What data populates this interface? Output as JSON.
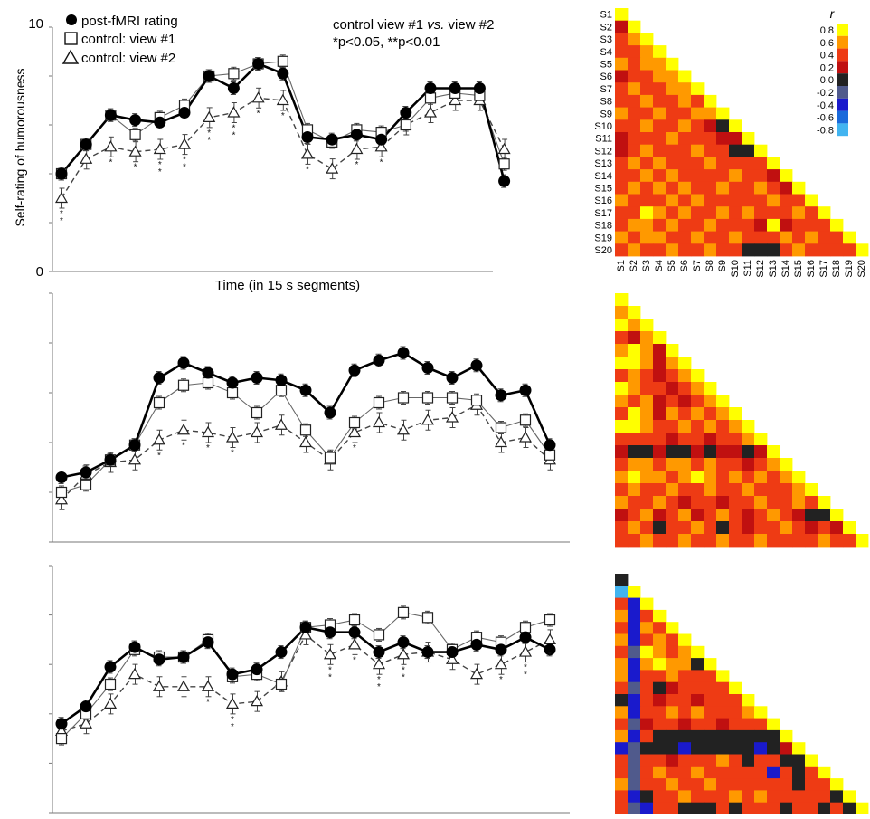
{
  "chart_data": {
    "type": "line",
    "y_axis": {
      "label": "Self-rating of humorousness",
      "ticks": [
        "0",
        "10"
      ],
      "ylim": [
        0,
        10
      ]
    },
    "x_axis": {
      "label": "Time (in 15 s segments)"
    },
    "legend": [
      {
        "name": "post-fMRI rating",
        "marker": "filled-circle"
      },
      {
        "name": "control: view #1",
        "marker": "open-square"
      },
      {
        "name": "control: view #2",
        "marker": "open-triangle"
      }
    ],
    "legend_position": "top-left",
    "annotation": {
      "line1_pre": "control view #1 ",
      "line1_em": "vs.",
      "line1_post": " view #2",
      "line2": "*p<0.05, **p<0.01"
    },
    "panels": [
      {
        "n_points": 20,
        "series": [
          {
            "name": "post-fMRI rating",
            "values": [
              4.0,
              5.2,
              6.4,
              6.2,
              6.1,
              6.5,
              8.0,
              7.5,
              8.5,
              8.1,
              5.5,
              5.4,
              5.6,
              5.4,
              6.5,
              7.5,
              7.5,
              7.5,
              3.7,
              null
            ]
          },
          {
            "name": "control: view #1",
            "values": [
              4.0,
              5.2,
              6.4,
              5.6,
              6.3,
              6.8,
              8.0,
              8.1,
              8.5,
              8.6,
              5.8,
              5.3,
              5.8,
              5.7,
              6.0,
              7.1,
              7.3,
              7.2,
              4.4,
              null
            ]
          },
          {
            "name": "control: view #2",
            "values": [
              3.0,
              4.6,
              5.1,
              4.9,
              5.0,
              5.2,
              6.3,
              6.5,
              7.1,
              7.0,
              4.8,
              4.2,
              5.0,
              5.1,
              6.0,
              6.5,
              7.0,
              7.0,
              5.0,
              null
            ]
          }
        ],
        "significance": [
          [
            "**"
          ],
          [],
          [
            "*"
          ],
          [
            "*"
          ],
          [
            "**"
          ],
          [
            "**"
          ],
          [
            "**"
          ],
          [
            "**"
          ],
          [
            "*"
          ],
          [
            "*"
          ],
          [
            "*"
          ],
          [],
          [
            "*"
          ],
          [
            "*"
          ],
          [],
          [],
          [],
          [],
          [],
          []
        ]
      },
      {
        "n_points": 21,
        "series": [
          {
            "name": "post-fMRI rating",
            "values": [
              2.6,
              2.8,
              3.3,
              3.9,
              6.6,
              7.2,
              6.8,
              6.4,
              6.6,
              6.5,
              6.1,
              5.2,
              6.9,
              7.3,
              7.6,
              7.0,
              6.6,
              7.1,
              5.9,
              6.1,
              3.9
            ]
          },
          {
            "name": "control: view #1",
            "values": [
              2.0,
              2.3,
              3.3,
              3.9,
              5.6,
              6.3,
              6.4,
              6.0,
              5.2,
              6.1,
              4.5,
              3.4,
              4.8,
              5.6,
              5.8,
              5.8,
              5.8,
              5.7,
              4.6,
              4.9,
              3.5
            ]
          },
          {
            "name": "control: view #2",
            "values": [
              1.7,
              2.7,
              3.2,
              3.3,
              4.1,
              4.5,
              4.4,
              4.2,
              4.4,
              4.7,
              4.0,
              3.3,
              4.4,
              4.8,
              4.5,
              4.9,
              5.0,
              5.5,
              4.0,
              4.2,
              3.3
            ]
          }
        ],
        "significance": [
          [],
          [],
          [],
          [],
          [
            "*"
          ],
          [
            "*"
          ],
          [
            "*"
          ],
          [
            "*"
          ],
          [],
          [],
          [],
          [],
          [
            "*"
          ],
          [],
          [],
          [],
          [],
          [],
          [],
          [],
          []
        ]
      },
      {
        "n_points": 21,
        "series": [
          {
            "name": "post-fMRI rating",
            "values": [
              3.6,
              4.3,
              5.9,
              6.7,
              6.2,
              6.3,
              6.9,
              5.6,
              5.8,
              6.5,
              7.5,
              7.3,
              7.3,
              6.5,
              6.9,
              6.5,
              6.5,
              6.8,
              6.6,
              7.1,
              6.6
            ]
          },
          {
            "name": "control: view #1",
            "values": [
              3.0,
              4.0,
              5.2,
              6.6,
              6.3,
              6.3,
              7.0,
              5.5,
              5.6,
              5.2,
              7.5,
              7.6,
              7.8,
              7.2,
              8.1,
              7.9,
              6.6,
              7.1,
              6.9,
              7.5,
              7.8
            ]
          },
          {
            "name": "control: view #2",
            "values": [
              3.3,
              3.6,
              4.4,
              5.6,
              5.1,
              5.1,
              5.1,
              4.4,
              4.5,
              5.3,
              7.2,
              6.4,
              6.8,
              6.0,
              6.4,
              6.5,
              6.2,
              5.6,
              6.0,
              6.5,
              7.0
            ]
          }
        ],
        "significance": [
          [],
          [],
          [],
          [],
          [],
          [],
          [
            "*"
          ],
          [
            "**"
          ],
          [],
          [],
          [],
          [
            "**"
          ],
          [
            "*"
          ],
          [
            "**"
          ],
          [
            "**"
          ],
          [],
          [],
          [],
          [
            "*"
          ],
          [
            "**"
          ],
          [
            "*"
          ]
        ]
      }
    ]
  },
  "heatmap_data": {
    "type": "heatmap",
    "title": "r",
    "row_labels": [
      "S1",
      "S2",
      "S3",
      "S4",
      "S5",
      "S6",
      "S7",
      "S8",
      "S9",
      "S10",
      "S11",
      "S12",
      "S13",
      "S14",
      "S15",
      "S16",
      "S17",
      "S18",
      "S19",
      "S20"
    ],
    "col_labels": [
      "S1",
      "S2",
      "S3",
      "S4",
      "S5",
      "S6",
      "S7",
      "S8",
      "S9",
      "S10",
      "S11",
      "S12",
      "S13",
      "S14",
      "S15",
      "S16",
      "S17",
      "S18",
      "S19",
      "S20"
    ],
    "colorbar": {
      "ticks": [
        "0.8",
        "0.6",
        "0.4",
        "0.2",
        "0.0",
        "-0.2",
        "-0.4",
        "-0.6",
        "-0.8"
      ],
      "colors": [
        "#ffff00",
        "#ff9900",
        "#ee3b14",
        "#c01010",
        "#222222",
        "#505a8c",
        "#1a1acc",
        "#1a6adb",
        "#42b4f0"
      ]
    },
    "matrices": [
      [
        [
          0.8
        ],
        [
          0.2,
          0.8
        ],
        [
          0.4,
          0.6,
          0.8
        ],
        [
          0.4,
          0.4,
          0.6,
          0.8
        ],
        [
          0.6,
          0.4,
          0.6,
          0.6,
          0.8
        ],
        [
          0.2,
          0.4,
          0.4,
          0.6,
          0.6,
          0.8
        ],
        [
          0.4,
          0.6,
          0.4,
          0.4,
          0.6,
          0.6,
          0.8
        ],
        [
          0.4,
          0.4,
          0.6,
          0.4,
          0.4,
          0.6,
          0.4,
          0.8
        ],
        [
          0.6,
          0.4,
          0.4,
          0.6,
          0.4,
          0.4,
          0.6,
          0.6,
          0.8
        ],
        [
          0.4,
          0.4,
          0.6,
          0.4,
          0.4,
          0.6,
          0.4,
          0.2,
          0.0,
          0.8
        ],
        [
          0.2,
          0.4,
          0.4,
          0.4,
          0.6,
          0.4,
          0.4,
          0.4,
          0.2,
          0.2,
          0.8
        ],
        [
          0.2,
          0.4,
          0.6,
          0.4,
          0.4,
          0.4,
          0.6,
          0.4,
          0.4,
          0.0,
          0.0,
          0.8
        ],
        [
          0.4,
          0.6,
          0.4,
          0.6,
          0.4,
          0.4,
          0.4,
          0.6,
          0.4,
          0.4,
          0.4,
          0.4,
          0.8
        ],
        [
          0.4,
          0.4,
          0.6,
          0.4,
          0.6,
          0.4,
          0.4,
          0.4,
          0.4,
          0.6,
          0.4,
          0.4,
          0.2,
          0.8
        ],
        [
          0.4,
          0.6,
          0.4,
          0.6,
          0.4,
          0.6,
          0.4,
          0.4,
          0.6,
          0.4,
          0.4,
          0.6,
          0.4,
          0.2,
          0.8
        ],
        [
          0.6,
          0.4,
          0.4,
          0.4,
          0.6,
          0.4,
          0.6,
          0.4,
          0.4,
          0.4,
          0.4,
          0.4,
          0.6,
          0.4,
          0.4,
          0.8
        ],
        [
          0.4,
          0.4,
          0.8,
          0.6,
          0.4,
          0.6,
          0.4,
          0.4,
          0.6,
          0.4,
          0.6,
          0.4,
          0.4,
          0.4,
          0.6,
          0.4,
          0.8
        ],
        [
          0.4,
          0.6,
          0.6,
          0.4,
          0.6,
          0.4,
          0.4,
          0.6,
          0.4,
          0.4,
          0.4,
          0.2,
          0.8,
          0.2,
          0.4,
          0.4,
          0.4,
          0.8
        ],
        [
          0.6,
          0.4,
          0.6,
          0.6,
          0.4,
          0.4,
          0.6,
          0.4,
          0.4,
          0.6,
          0.4,
          0.4,
          0.4,
          0.6,
          0.4,
          0.6,
          0.4,
          0.4,
          0.8
        ],
        [
          0.4,
          0.6,
          0.4,
          0.4,
          0.6,
          0.4,
          0.4,
          0.6,
          0.4,
          0.4,
          0.0,
          0.0,
          0.0,
          0.4,
          0.6,
          0.4,
          0.4,
          0.4,
          0.4,
          0.8
        ]
      ],
      [
        [
          0.8
        ],
        [
          0.6,
          0.8
        ],
        [
          0.8,
          0.6,
          0.8
        ],
        [
          0.4,
          0.2,
          0.6,
          0.8
        ],
        [
          0.6,
          0.8,
          0.6,
          0.2,
          0.8
        ],
        [
          0.8,
          0.8,
          0.6,
          0.2,
          0.6,
          0.8
        ],
        [
          0.4,
          0.6,
          0.4,
          0.2,
          0.4,
          0.6,
          0.8
        ],
        [
          0.8,
          0.6,
          0.4,
          0.4,
          0.2,
          0.4,
          0.6,
          0.8
        ],
        [
          0.6,
          0.4,
          0.6,
          0.2,
          0.4,
          0.2,
          0.4,
          0.6,
          0.8
        ],
        [
          0.4,
          0.8,
          0.6,
          0.2,
          0.6,
          0.4,
          0.6,
          0.4,
          0.6,
          0.8
        ],
        [
          0.8,
          0.8,
          0.6,
          0.4,
          0.4,
          0.6,
          0.4,
          0.6,
          0.4,
          0.6,
          0.8
        ],
        [
          0.4,
          0.4,
          0.4,
          0.4,
          0.2,
          0.4,
          0.4,
          0.2,
          0.4,
          0.4,
          0.6,
          0.8
        ],
        [
          0.2,
          0.0,
          0.0,
          0.2,
          0.0,
          0.0,
          0.2,
          0.0,
          0.2,
          0.2,
          0.0,
          0.2,
          0.8
        ],
        [
          0.4,
          0.6,
          0.6,
          0.4,
          0.6,
          0.6,
          0.4,
          0.6,
          0.4,
          0.4,
          0.2,
          0.4,
          0.6,
          0.8
        ],
        [
          0.6,
          0.8,
          0.6,
          0.6,
          0.4,
          0.6,
          0.8,
          0.6,
          0.4,
          0.6,
          0.4,
          0.6,
          0.4,
          0.6,
          0.8
        ],
        [
          0.4,
          0.6,
          0.4,
          0.4,
          0.6,
          0.4,
          0.4,
          0.6,
          0.4,
          0.4,
          0.6,
          0.4,
          0.4,
          0.4,
          0.6,
          0.8
        ],
        [
          0.6,
          0.4,
          0.4,
          0.6,
          0.4,
          0.2,
          0.4,
          0.4,
          0.2,
          0.4,
          0.4,
          0.6,
          0.4,
          0.4,
          0.6,
          0.4,
          0.8
        ],
        [
          0.2,
          0.4,
          0.6,
          0.2,
          0.4,
          0.6,
          0.2,
          0.4,
          0.6,
          0.4,
          0.2,
          0.4,
          0.6,
          0.4,
          0.2,
          0.0,
          0.0,
          0.8
        ],
        [
          0.4,
          0.6,
          0.4,
          0.0,
          0.4,
          0.4,
          0.6,
          0.4,
          0.0,
          0.4,
          0.2,
          0.4,
          0.4,
          0.6,
          0.4,
          0.2,
          0.4,
          0.2,
          0.8
        ],
        [
          0.4,
          0.4,
          0.6,
          0.4,
          0.4,
          0.6,
          0.4,
          0.4,
          0.6,
          0.4,
          0.4,
          0.6,
          0.4,
          0.4,
          0.4,
          0.4,
          0.6,
          0.4,
          0.4,
          0.8
        ]
      ],
      [
        [
          0.0
        ],
        [
          -0.8,
          0.8
        ],
        [
          0.4,
          -0.4,
          0.8
        ],
        [
          0.6,
          -0.4,
          0.4,
          0.8
        ],
        [
          0.4,
          -0.4,
          0.6,
          0.4,
          0.8
        ],
        [
          0.6,
          -0.4,
          0.4,
          0.6,
          0.4,
          0.8
        ],
        [
          0.4,
          -0.2,
          0.8,
          0.6,
          0.4,
          0.6,
          0.8
        ],
        [
          0.6,
          -0.4,
          0.6,
          0.8,
          0.6,
          0.6,
          0.0,
          0.8
        ],
        [
          0.6,
          -0.4,
          0.4,
          0.4,
          0.6,
          0.4,
          0.4,
          0.4,
          0.8
        ],
        [
          0.4,
          -0.2,
          0.4,
          0.0,
          0.2,
          0.4,
          0.4,
          0.4,
          0.4,
          0.8
        ],
        [
          0.0,
          -0.4,
          0.4,
          0.2,
          0.4,
          0.4,
          0.2,
          0.4,
          0.4,
          0.4,
          0.8
        ],
        [
          0.6,
          -0.4,
          0.4,
          0.4,
          0.6,
          0.4,
          0.6,
          0.4,
          0.4,
          0.4,
          0.6,
          0.8
        ],
        [
          0.4,
          -0.2,
          0.2,
          0.4,
          0.4,
          0.2,
          0.4,
          0.4,
          0.2,
          0.4,
          0.4,
          0.4,
          0.8
        ],
        [
          0.6,
          -0.4,
          0.4,
          0.0,
          0.0,
          0.0,
          0.0,
          0.0,
          0.0,
          0.0,
          0.0,
          0.0,
          0.0,
          0.8
        ],
        [
          -0.4,
          -0.2,
          0.0,
          0.0,
          0.0,
          -0.4,
          0.0,
          0.0,
          0.0,
          0.0,
          0.0,
          -0.4,
          0.0,
          0.2,
          0.8
        ],
        [
          0.4,
          -0.2,
          0.4,
          0.4,
          0.2,
          0.4,
          0.4,
          0.4,
          0.6,
          0.4,
          0.0,
          0.4,
          0.4,
          0.0,
          0.0,
          0.8
        ],
        [
          0.4,
          -0.2,
          0.4,
          0.6,
          0.4,
          0.4,
          0.6,
          0.4,
          0.4,
          0.4,
          0.4,
          0.4,
          -0.4,
          0.4,
          0.0,
          0.4,
          0.8
        ],
        [
          0.6,
          -0.2,
          0.4,
          0.4,
          0.6,
          0.4,
          0.4,
          0.6,
          0.4,
          0.4,
          0.4,
          0.4,
          0.4,
          0.4,
          0.0,
          0.4,
          0.4,
          0.8
        ],
        [
          0.4,
          -0.4,
          0.0,
          0.4,
          0.4,
          0.6,
          0.4,
          0.4,
          0.4,
          0.6,
          0.4,
          0.6,
          0.4,
          0.4,
          0.4,
          0.4,
          0.4,
          0.0,
          0.8
        ],
        [
          0.4,
          -0.2,
          -0.4,
          0.4,
          0.4,
          0.0,
          0.0,
          0.0,
          0.4,
          0.0,
          0.4,
          0.4,
          0.4,
          0.0,
          0.4,
          0.4,
          0.0,
          0.4,
          0.0,
          0.8
        ]
      ]
    ]
  }
}
